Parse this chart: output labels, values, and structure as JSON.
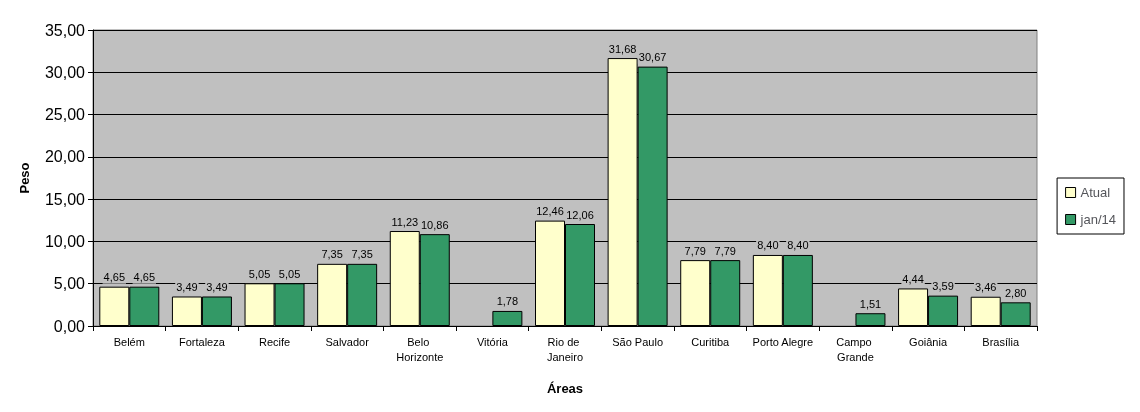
{
  "chart_data": {
    "type": "bar",
    "xlabel": "Áreas",
    "ylabel": "Peso",
    "categories": [
      "Belém",
      "Fortaleza",
      "Recife",
      "Salvador",
      "Belo Horizonte",
      "Vitória",
      "Rio de Janeiro",
      "São Paulo",
      "Curitiba",
      "Porto Alegre",
      "Campo Grande",
      "Goiânia",
      "Brasília"
    ],
    "series": [
      {
        "name": "Atual",
        "color": "#ffffcc",
        "values": [
          4.65,
          3.49,
          5.05,
          7.35,
          11.23,
          null,
          12.46,
          31.68,
          7.79,
          8.4,
          null,
          4.44,
          3.46
        ],
        "value_labels": [
          "4,65",
          "3,49",
          "5,05",
          "7,35",
          "11,23",
          null,
          "12,46",
          "31,68",
          "7,79",
          "8,40",
          null,
          "4,44",
          "3,46"
        ]
      },
      {
        "name": "jan/14",
        "color": "#339966",
        "values": [
          4.65,
          3.49,
          5.05,
          7.35,
          10.86,
          1.78,
          12.06,
          30.67,
          7.79,
          8.4,
          1.51,
          3.59,
          2.8
        ],
        "value_labels": [
          "4,65",
          "3,49",
          "5,05",
          "7,35",
          "10,86",
          "1,78",
          "12,06",
          "30,67",
          "7,79",
          "8,40",
          "1,51",
          "3,59",
          "2,80"
        ]
      }
    ],
    "ylim": [
      0,
      35
    ],
    "yticks": [
      {
        "value": 0,
        "label": "0,00"
      },
      {
        "value": 5,
        "label": "5,00"
      },
      {
        "value": 10,
        "label": "10,00"
      },
      {
        "value": 15,
        "label": "15,00"
      },
      {
        "value": 20,
        "label": "20,00"
      },
      {
        "value": 25,
        "label": "25,00"
      },
      {
        "value": 30,
        "label": "30,00"
      },
      {
        "value": 35,
        "label": "35,00"
      }
    ],
    "grid": "y",
    "legend": "right"
  }
}
